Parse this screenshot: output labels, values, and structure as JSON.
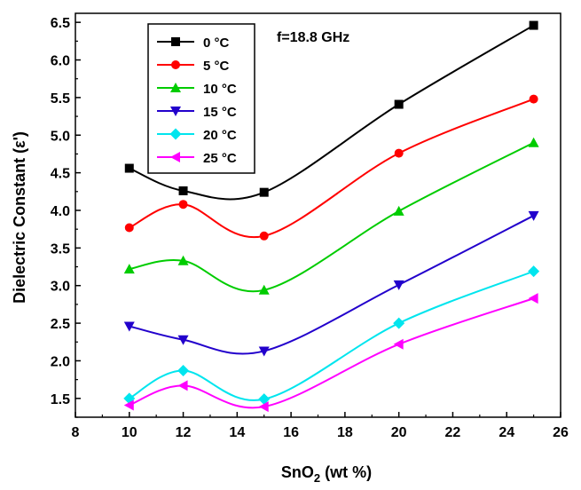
{
  "chart_data": {
    "type": "line",
    "title": "",
    "annotation": "f=18.8 GHz",
    "xlabel_main": "SnO",
    "xlabel_sub": "2",
    "xlabel_tail": " (wt %)",
    "ylabel": "Dielectric Constant (ε')",
    "xlim": [
      8,
      26
    ],
    "ylim": [
      1.25,
      6.62
    ],
    "xticks": [
      8,
      10,
      12,
      14,
      16,
      18,
      20,
      22,
      24,
      26
    ],
    "yticks": [
      1.5,
      2.0,
      2.5,
      3.0,
      3.5,
      4.0,
      4.5,
      5.0,
      5.5,
      6.0,
      6.5
    ],
    "x": [
      10,
      12,
      15,
      20,
      25
    ],
    "series": [
      {
        "name": "0 °C",
        "color": "#000000",
        "marker": "square",
        "values": [
          4.56,
          4.26,
          4.24,
          5.41,
          6.46
        ]
      },
      {
        "name": "5 °C",
        "color": "#ff0000",
        "marker": "circle",
        "values": [
          3.77,
          4.08,
          3.66,
          4.76,
          5.48
        ]
      },
      {
        "name": "10 °C",
        "color": "#00cc00",
        "marker": "triangle-up",
        "values": [
          3.22,
          3.33,
          2.94,
          3.99,
          4.9
        ]
      },
      {
        "name": "15 °C",
        "color": "#2200cc",
        "marker": "triangle-down",
        "values": [
          2.46,
          2.28,
          2.13,
          3.01,
          3.93
        ]
      },
      {
        "name": "20 °C",
        "color": "#00e5ee",
        "marker": "diamond",
        "values": [
          1.5,
          1.87,
          1.49,
          2.5,
          3.19
        ]
      },
      {
        "name": "25 °C",
        "color": "#ff00ff",
        "marker": "triangle-left",
        "values": [
          1.41,
          1.67,
          1.39,
          2.22,
          2.83
        ]
      }
    ],
    "legend_position": "top-left",
    "grid": false
  }
}
